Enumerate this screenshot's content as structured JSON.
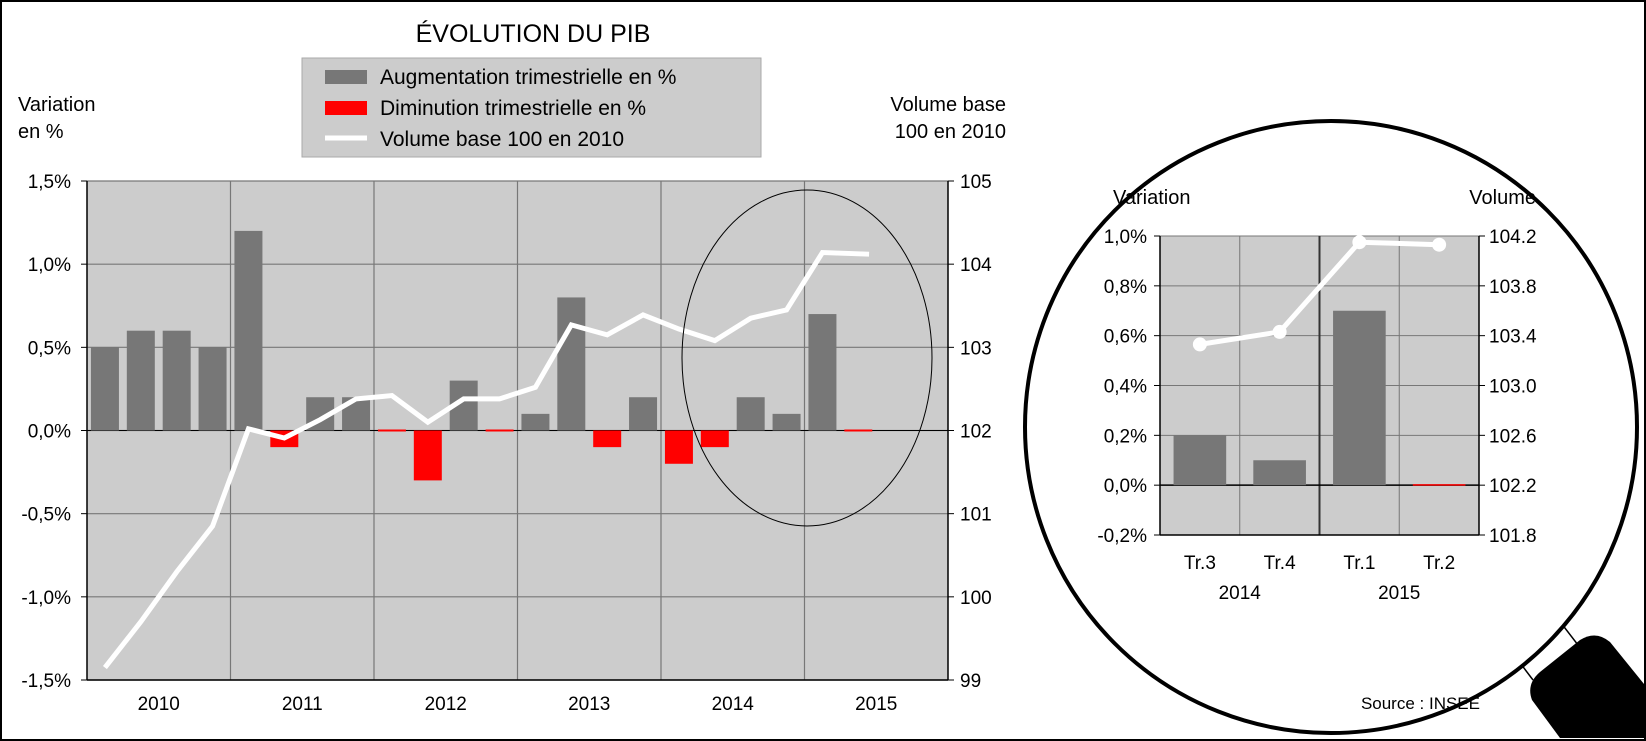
{
  "colors": {
    "increase": "#777777",
    "decrease": "#ff0000",
    "volume_line": "#ffffff",
    "plot_bg": "#cccccc",
    "grid": "#777777"
  },
  "chart_data": [
    {
      "type": "bar",
      "title": "ÉVOLUTION DU PIB",
      "ylabel_left": [
        "Variation",
        "en %"
      ],
      "ylabel_right": [
        "Volume base",
        "100 en 2010"
      ],
      "legend": [
        "Augmentation trimestrielle en %",
        "Diminution trimestrielle en %",
        "Volume base 100 en 2010"
      ],
      "legend_placement": "top-center",
      "years": [
        "2010",
        "2011",
        "2012",
        "2013",
        "2014",
        "2015"
      ],
      "quarters_per_year": [
        4,
        4,
        4,
        4,
        4,
        2
      ],
      "variation_pct": [
        0.5,
        0.6,
        0.6,
        0.5,
        1.2,
        -0.1,
        0.2,
        0.2,
        0.0,
        -0.3,
        0.3,
        0.0,
        0.1,
        0.8,
        -0.1,
        0.2,
        -0.2,
        -0.1,
        0.2,
        0.1,
        0.7,
        0.0
      ],
      "volume_index": [
        99.15,
        99.7,
        100.3,
        100.85,
        102.02,
        101.91,
        102.13,
        102.38,
        102.42,
        102.1,
        102.38,
        102.38,
        102.52,
        103.27,
        103.15,
        103.39,
        103.22,
        103.08,
        103.35,
        103.45,
        104.14,
        104.12
      ],
      "ylim_left": [
        -1.5,
        1.5
      ],
      "yticks_left": [
        "-1,5%",
        "-1,0%",
        "-0,5%",
        "0,0%",
        "0,5%",
        "1,0%",
        "1,5%"
      ],
      "ylim_right": [
        99,
        105
      ],
      "yticks_right": [
        "99",
        "100",
        "101",
        "102",
        "103",
        "104",
        "105"
      ],
      "grid": true
    },
    {
      "type": "bar",
      "title": "",
      "ylabel_left": "Variation",
      "ylabel_right": "Volume",
      "categories": [
        "Tr.3",
        "Tr.4",
        "Tr.1",
        "Tr.2"
      ],
      "years": [
        "2014",
        "2015"
      ],
      "variation_pct": [
        0.2,
        0.1,
        0.7,
        0.0
      ],
      "volume_index": [
        103.33,
        103.43,
        104.15,
        104.13
      ],
      "ylim_left": [
        -0.2,
        1.0
      ],
      "yticks_left": [
        "-0,2%",
        "0,0%",
        "0,2%",
        "0,4%",
        "0,6%",
        "0,8%",
        "1,0%"
      ],
      "ylim_right": [
        101.8,
        104.2
      ],
      "yticks_right": [
        "101.8",
        "102.2",
        "102.6",
        "103.0",
        "103.4",
        "103.8",
        "104.2"
      ],
      "grid": true
    }
  ],
  "source": "Source : INSEE"
}
